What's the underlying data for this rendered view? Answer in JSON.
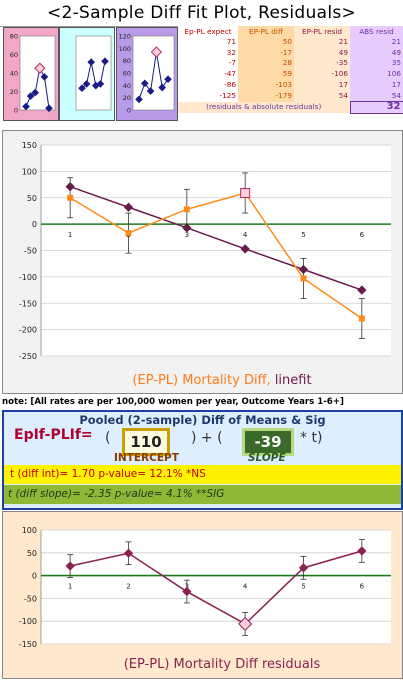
{
  "title": "<2-Sample Diff Fit Plot, Residuals>",
  "thumbnails": [
    {
      "bg": "#f2a7c8",
      "ticks": [
        "80",
        "60",
        "40",
        "20",
        "0"
      ],
      "values": [
        4,
        16,
        20,
        48,
        38,
        2
      ],
      "highlight": 3,
      "ymax": 85
    },
    {
      "bg": "#ccffff",
      "ticks": [],
      "values": [
        25,
        30,
        55,
        28,
        30,
        56
      ],
      "highlight": -1,
      "ymax": 85
    },
    {
      "bg": "#b89ae8",
      "ticks": [
        "120",
        "100",
        "80",
        "60",
        "40",
        "20",
        "0"
      ],
      "values": [
        18,
        45,
        32,
        98,
        38,
        52
      ],
      "highlight": 3,
      "ymax": 125
    }
  ],
  "table": {
    "headers": [
      "Ep-PL expect",
      "EP-PL diff",
      "EP-PL resid",
      "ABS resid"
    ],
    "rows": [
      [
        "71",
        "50",
        "21",
        "21"
      ],
      [
        "32",
        "-17",
        "49",
        "49"
      ],
      [
        "-7",
        "28",
        "-35",
        "35"
      ],
      [
        "-47",
        "59",
        "-106",
        "106"
      ],
      [
        "-86",
        "-103",
        "17",
        "17"
      ],
      [
        "-125",
        "-179",
        "54",
        "54"
      ]
    ],
    "footer": "(residuals & absolute residuals)",
    "total": "32"
  },
  "chart_data": [
    {
      "type": "line",
      "title": "(EP-PL) Mortality Diff, linefit",
      "x": [
        1,
        2,
        3,
        4,
        5,
        6
      ],
      "ylim": [
        -250,
        150
      ],
      "yticks": [
        150,
        100,
        50,
        0,
        -50,
        -100,
        -150,
        -200,
        -250
      ],
      "series": [
        {
          "values": [
            71,
            32,
            -7,
            -47,
            -86,
            -125
          ],
          "color": "#6a1b4d"
        },
        {
          "values": [
            50,
            -17,
            28,
            59,
            -103,
            -179
          ],
          "color": "#ff8c1a",
          "errors": [
            38,
            38,
            38,
            38,
            38,
            38
          ]
        }
      ],
      "grid": true
    },
    {
      "type": "line",
      "title": "(EP-PL) Mortality Diff residuals",
      "x": [
        1,
        2,
        3,
        4,
        5,
        6
      ],
      "ylim": [
        -150,
        100
      ],
      "yticks": [
        100,
        50,
        0,
        -50,
        -100,
        -150
      ],
      "series": [
        {
          "values": [
            21,
            49,
            -35,
            -106,
            17,
            54
          ],
          "color": "#8b2252",
          "errors": [
            25,
            25,
            25,
            25,
            25,
            25
          ]
        }
      ],
      "grid": true
    }
  ],
  "note": "note: [All rates are per 100,000 women per year, Outcome Years 1-6+]",
  "stats": {
    "title": "Pooled (2-sample) Diff of Means & Sig",
    "eq_label": "EpIf-PLIf=",
    "open": "(",
    "plus": ") + (",
    "tail": "* t)",
    "intercept": "110",
    "slope": "-39",
    "intercept_label": "INTERCEPT",
    "slope_label": "SLOPE",
    "row1": "t (diff int)=      1.70   p-value=  12.1%     *NS",
    "row2": "t (diff slope)=    -2.35   p-value=   4.1%     **SIG"
  }
}
